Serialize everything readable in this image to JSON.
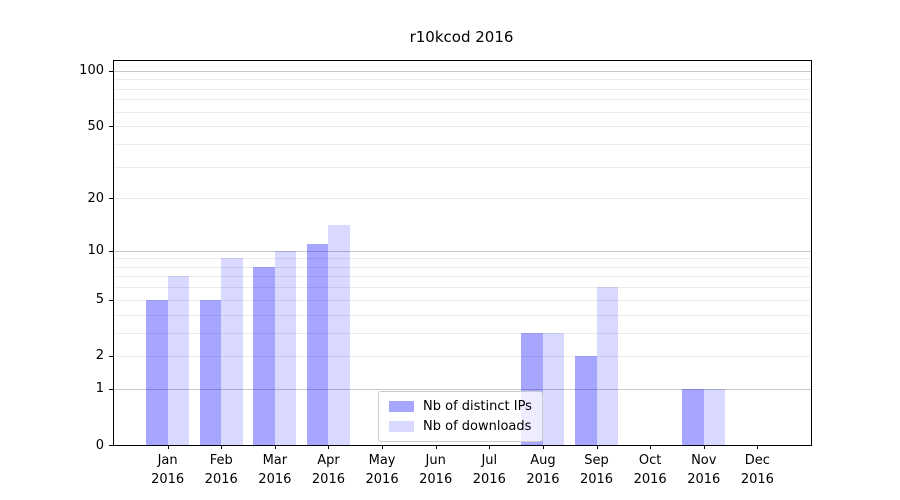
{
  "title": "r10kcod 2016",
  "colors": {
    "distinct_ips": "rgba(0,0,255,0.35)",
    "downloads": "rgba(0,0,255,0.15)",
    "major_grid": "#c8c8c8",
    "minor_grid": "#ebebeb",
    "axis": "#000000"
  },
  "legend": {
    "items": [
      {
        "label": "Nb of distinct IPs",
        "color_key": "distinct_ips"
      },
      {
        "label": "Nb of downloads",
        "color_key": "downloads"
      }
    ]
  },
  "chart_data": {
    "type": "bar",
    "title": "r10kcod 2016",
    "categories": [
      "Jan",
      "Feb",
      "Mar",
      "Apr",
      "May",
      "Jun",
      "Jul",
      "Aug",
      "Sep",
      "Oct",
      "Nov",
      "Dec"
    ],
    "year": "2016",
    "series": [
      {
        "name": "Nb of distinct IPs",
        "values": [
          5,
          5,
          8,
          11,
          0,
          0,
          0,
          3,
          2,
          0,
          1,
          0
        ]
      },
      {
        "name": "Nb of downloads",
        "values": [
          7,
          9,
          10,
          14,
          0,
          0,
          0,
          3,
          6,
          0,
          1,
          0
        ]
      }
    ],
    "xlabel": "",
    "ylabel": "",
    "yscale": "log10(1+v)",
    "ylim": [
      0,
      113
    ],
    "ytick_labels": [
      100,
      50,
      20,
      10,
      5,
      2,
      1,
      0
    ],
    "major_gridlines": [
      1,
      10,
      100
    ],
    "minor_gridlines": [
      2,
      3,
      4,
      5,
      6,
      7,
      8,
      9,
      20,
      30,
      40,
      50,
      60,
      70,
      80,
      90
    ],
    "legend_position": "lower center-right inside plot",
    "grid": true
  }
}
